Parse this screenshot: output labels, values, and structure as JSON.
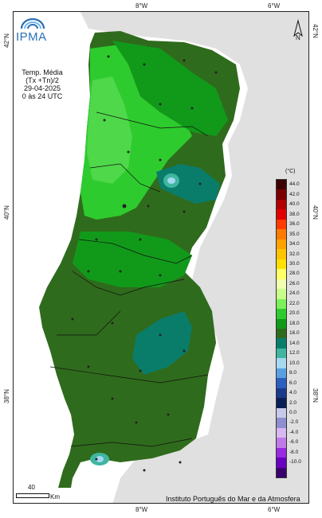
{
  "header": {
    "logo_text": "IPMA",
    "title_line1": "Temp. Média",
    "title_line2": "(Tx +Tn)/2",
    "date": "29-04-2025",
    "period": "0 às 24 UTC"
  },
  "axes": {
    "top_ticks": [
      "8°W",
      "6°W"
    ],
    "bottom_ticks": [
      "8°W",
      "6°W"
    ],
    "left_ticks": [
      "42°N",
      "40°N",
      "38°N"
    ],
    "right_ticks": [
      "42°N",
      "40°N",
      "38°N"
    ]
  },
  "north_label": "N",
  "legend": {
    "unit": "(°C)",
    "items": [
      {
        "label": "44.0",
        "color": "#3d0000"
      },
      {
        "label": "42.0",
        "color": "#7a0000"
      },
      {
        "label": "40.0",
        "color": "#b00000"
      },
      {
        "label": "38.0",
        "color": "#e00000"
      },
      {
        "label": "36.0",
        "color": "#ff3b00"
      },
      {
        "label": "35.0",
        "color": "#ff7a00"
      },
      {
        "label": "34.0",
        "color": "#ffa200"
      },
      {
        "label": "32.0",
        "color": "#ffc400"
      },
      {
        "label": "30.0",
        "color": "#ffe000"
      },
      {
        "label": "28.0",
        "color": "#ffff66"
      },
      {
        "label": "26.0",
        "color": "#f2ffb0"
      },
      {
        "label": "24.0",
        "color": "#c8ff8a"
      },
      {
        "label": "22.0",
        "color": "#7cf05a"
      },
      {
        "label": "20.0",
        "color": "#2ecb2e"
      },
      {
        "label": "18.0",
        "color": "#119a1a"
      },
      {
        "label": "16.0",
        "color": "#2f6b1c"
      },
      {
        "label": "14.0",
        "color": "#0a7c6a"
      },
      {
        "label": "12.0",
        "color": "#3fb6a0"
      },
      {
        "label": "10.0",
        "color": "#a6d8f0"
      },
      {
        "label": "8.0",
        "color": "#5aa0e0"
      },
      {
        "label": "6.0",
        "color": "#2a5fbf"
      },
      {
        "label": "4.0",
        "color": "#1a3a8a"
      },
      {
        "label": "2.0",
        "color": "#0a1f55"
      },
      {
        "label": "0.0",
        "color": "#c8c8e8"
      },
      {
        "label": "-2.0",
        "color": "#8e8ed0"
      },
      {
        "label": "-4.0",
        "color": "#d8b8f0"
      },
      {
        "label": "-6.0",
        "color": "#c07ae8"
      },
      {
        "label": "-8.0",
        "color": "#9a2ae0"
      },
      {
        "label": "-10.0",
        "color": "#6a00c0"
      },
      {
        "label": "",
        "color": "#3a0070"
      }
    ]
  },
  "scale": {
    "value": "40",
    "unit": "Km"
  },
  "credit": "Instituto Português do Mar e da Atmosfera"
}
